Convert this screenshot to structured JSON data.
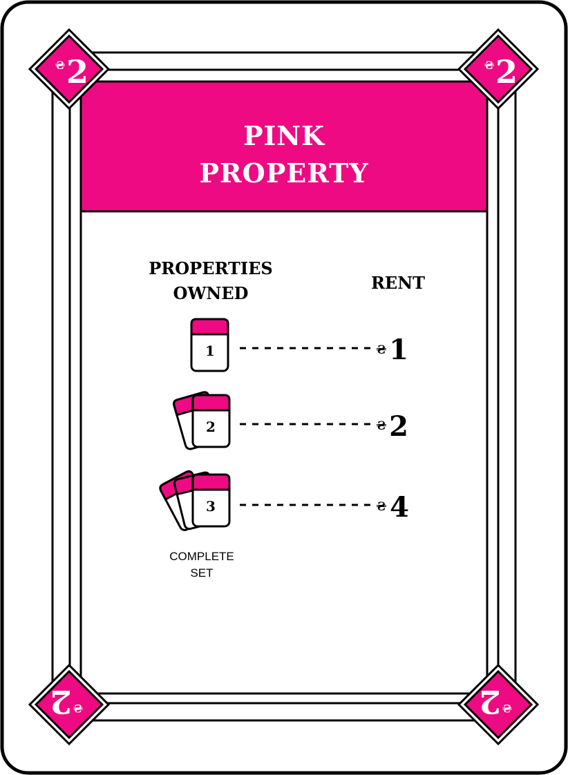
{
  "card": {
    "title_line1": "PINK",
    "title_line2": "PROPERTY",
    "currency_symbol": "₴",
    "value": "2",
    "color": "#ee0a82"
  },
  "table": {
    "header_owned_line1": "PROPERTIES",
    "header_owned_line2": "OWNED",
    "header_rent": "RENT",
    "rows": [
      {
        "count": "1",
        "rent": "1"
      },
      {
        "count": "2",
        "rent": "2"
      },
      {
        "count": "3",
        "rent": "4"
      }
    ],
    "complete_line1": "COMPLETE",
    "complete_line2": "SET"
  }
}
